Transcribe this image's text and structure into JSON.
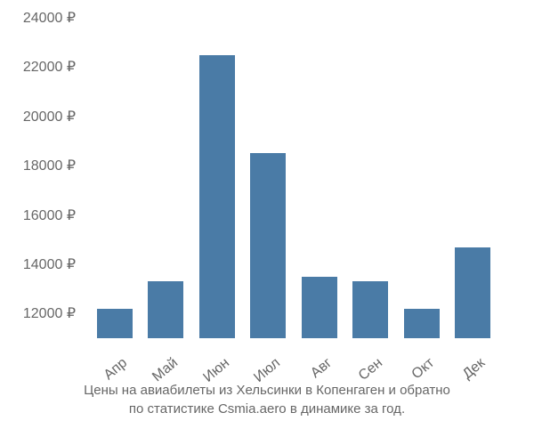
{
  "chart": {
    "type": "bar",
    "categories": [
      "Апр",
      "Май",
      "Июн",
      "Июл",
      "Авг",
      "Сен",
      "Окт",
      "Дек"
    ],
    "values": [
      12200,
      13300,
      22500,
      18500,
      13500,
      13300,
      12200,
      14700
    ],
    "bar_color": "#4a7ba6",
    "background_color": "#ffffff",
    "ylim_min": 11000,
    "ylim_max": 24000,
    "ytick_step": 2000,
    "yticks": [
      12000,
      14000,
      16000,
      18000,
      20000,
      22000,
      24000
    ],
    "ytick_labels": [
      "12000 ₽",
      "14000 ₽",
      "16000 ₽",
      "18000 ₽",
      "20000 ₽",
      "22000 ₽",
      "24000 ₽"
    ],
    "axis_label_color": "#666666",
    "axis_label_fontsize": 16,
    "bar_width_ratio": 0.7,
    "x_label_rotation": -40
  },
  "caption": {
    "line1": "Цены на авиабилеты из Хельсинки в Копенгаген и обратно",
    "line2": "по статистике Csmia.aero в динамике за год.",
    "color": "#666666",
    "fontsize": 15
  }
}
